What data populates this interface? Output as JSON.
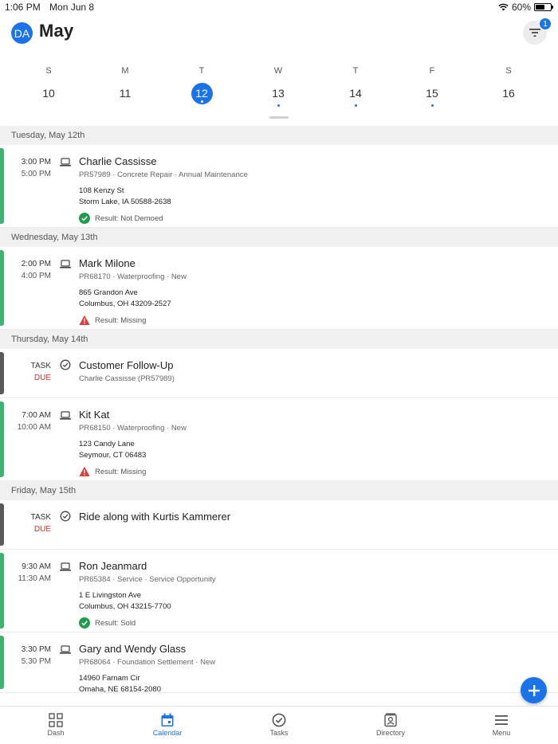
{
  "status_bar": {
    "time": "1:06 PM",
    "date": "Mon Jun 8",
    "battery": "60%",
    "battery_level": 0.6
  },
  "header": {
    "avatar_initials": "DA",
    "month": "May",
    "filter_badge_count": "1"
  },
  "week": [
    {
      "dow": "S",
      "date": "10",
      "selected": false,
      "has_events": false
    },
    {
      "dow": "M",
      "date": "11",
      "selected": false,
      "has_events": false
    },
    {
      "dow": "T",
      "date": "12",
      "selected": true,
      "has_events": true
    },
    {
      "dow": "W",
      "date": "13",
      "selected": false,
      "has_events": true
    },
    {
      "dow": "T",
      "date": "14",
      "selected": false,
      "has_events": true
    },
    {
      "dow": "F",
      "date": "15",
      "selected": false,
      "has_events": true
    },
    {
      "dow": "S",
      "date": "16",
      "selected": false,
      "has_events": false
    }
  ],
  "sections": [
    {
      "header": "Tuesday,  May 12th",
      "items": [
        {
          "kind": "appointment",
          "start": "3:00 PM",
          "end": "5:00 PM",
          "title": "Charlie Cassisse",
          "sub": "PR57989 · Concrete Repair · Annual Maintenance",
          "address1": "108 Kenzy St",
          "address2": "Storm Lake, IA 50588-2638",
          "result": "Result: Not Demoed",
          "result_status": "success"
        }
      ]
    },
    {
      "header": "Wednesday,  May 13th",
      "items": [
        {
          "kind": "appointment",
          "start": "2:00 PM",
          "end": "4:00 PM",
          "title": "Mark Milone",
          "sub": "PR68170 · Waterproofing · New",
          "address1": "865 Grandon Ave",
          "address2": "Columbus, OH 43209-2527",
          "result": "Result: Missing",
          "result_status": "warning"
        }
      ]
    },
    {
      "header": "Thursday,  May 14th",
      "items": [
        {
          "kind": "task",
          "task_label": "TASK",
          "due_label": "DUE",
          "title": "Customer Follow-Up",
          "sub": "Charlie Cassisse (PR57989)"
        },
        {
          "kind": "appointment",
          "start": "7:00 AM",
          "end": "10:00 AM",
          "title": "Kit Kat",
          "sub": "PR68150 · Waterproofing · New",
          "address1": "123 Candy Lane",
          "address2": "Seymour, CT 06483",
          "result": "Result: Missing",
          "result_status": "warning"
        }
      ]
    },
    {
      "header": "Friday,  May 15th",
      "items": [
        {
          "kind": "task",
          "task_label": "TASK",
          "due_label": "DUE",
          "title": "Ride along with Kurtis Kammerer",
          "sub": ""
        },
        {
          "kind": "appointment",
          "start": "9:30 AM",
          "end": "11:30 AM",
          "title": "Ron Jeanmard",
          "sub": "PR65384 · Service · Service Opportunity",
          "address1": "1 E Livingston Ave",
          "address2": "Columbus, OH 43215-7700",
          "result": "Result: Sold",
          "result_status": "success"
        },
        {
          "kind": "appointment",
          "start": "3:30 PM",
          "end": "5:30 PM",
          "title": "Gary and Wendy Glass",
          "sub": "PR68064 · Foundation Settlement · New",
          "address1": "14960 Farnam Cir",
          "address2": "Omaha, NE 68154-2080",
          "result": "",
          "result_status": "none"
        }
      ]
    }
  ],
  "tabs": [
    {
      "label": "Dash",
      "icon": "dashboard-icon",
      "active": false
    },
    {
      "label": "Calendar",
      "icon": "calendar-icon",
      "active": true
    },
    {
      "label": "Tasks",
      "icon": "check-circle-icon",
      "active": false
    },
    {
      "label": "Directory",
      "icon": "contacts-icon",
      "active": false
    },
    {
      "label": "Menu",
      "icon": "hamburger-icon",
      "active": false
    }
  ],
  "colors": {
    "accent": "#1a73e8",
    "appointment_bar": "#3cb371",
    "task_bar": "#5a5a5a",
    "due": "#d32f2f",
    "success": "#1e9e4a",
    "warning": "#e53935"
  }
}
